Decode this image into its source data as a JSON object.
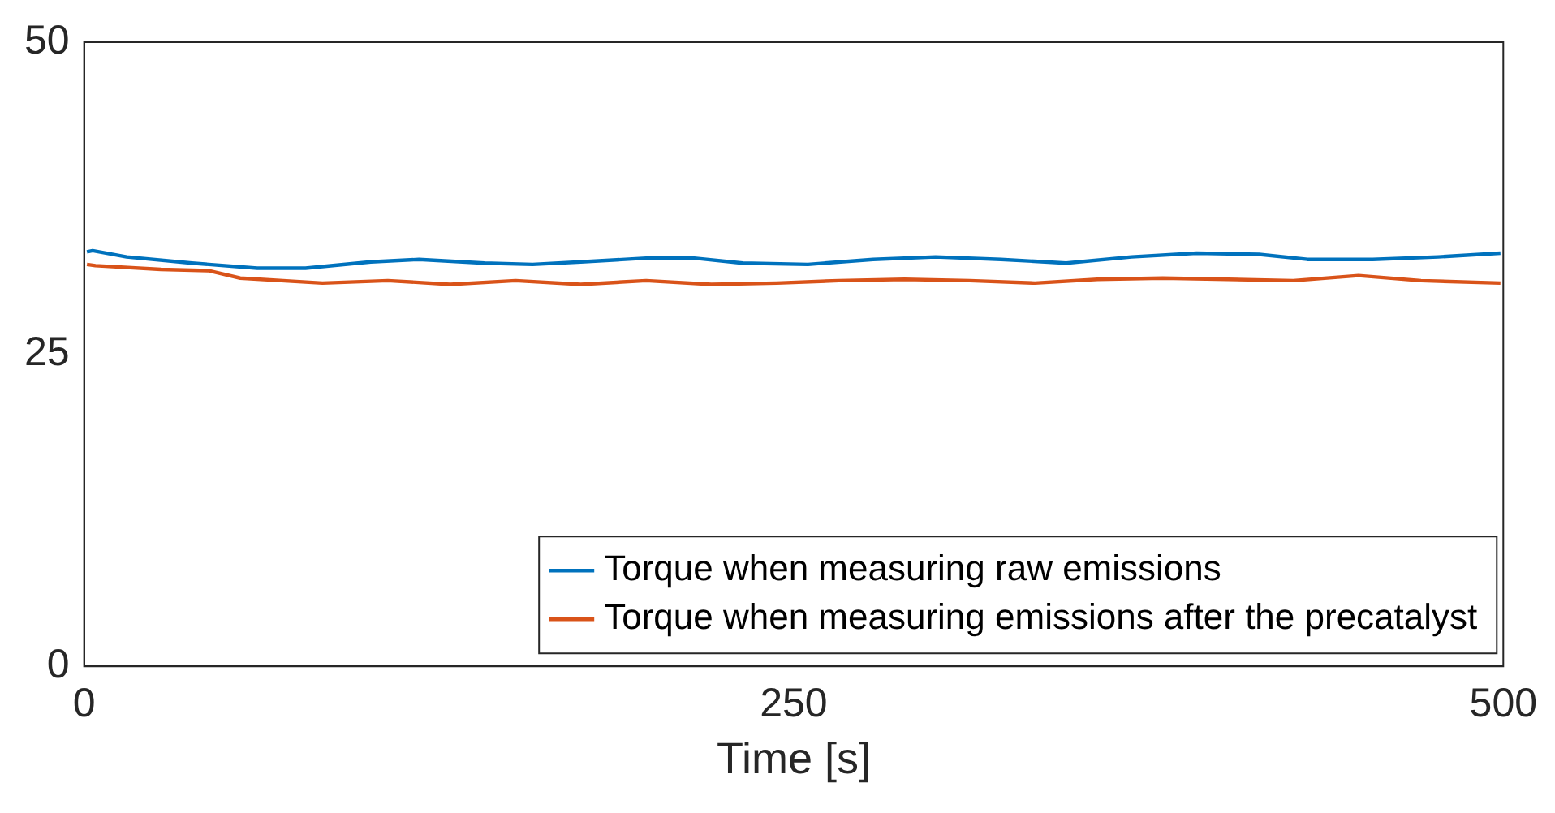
{
  "chart_data": {
    "type": "line",
    "xlabel": "Time [s]",
    "xlim": [
      0,
      500
    ],
    "xticks": [
      0,
      250,
      500
    ],
    "ylim": [
      0,
      50
    ],
    "yticks": [
      0,
      25,
      50
    ],
    "grid": false,
    "legend": "bottom right",
    "marker": "none",
    "line_style": "solid",
    "series": [
      {
        "name": "Torque when measuring raw emissions",
        "color": "#0072bd",
        "x": [
          1,
          3,
          15,
          38,
          61,
          78,
          101,
          118,
          141,
          158,
          175,
          198,
          215,
          232,
          255,
          278,
          300,
          323,
          346,
          369,
          392,
          414,
          431,
          454,
          477,
          499
        ],
        "values": [
          33.2,
          33.3,
          32.8,
          32.3,
          31.9,
          31.9,
          32.4,
          32.6,
          32.3,
          32.2,
          32.4,
          32.7,
          32.7,
          32.3,
          32.2,
          32.6,
          32.8,
          32.6,
          32.3,
          32.8,
          33.1,
          33.0,
          32.6,
          32.6,
          32.8,
          33.1
        ]
      },
      {
        "name": "Torque when measuring emissions after the precatalyst",
        "color": "#d95319",
        "x": [
          1,
          4,
          27,
          44,
          55,
          84,
          107,
          129,
          152,
          175,
          198,
          221,
          244,
          266,
          289,
          312,
          335,
          357,
          380,
          403,
          426,
          449,
          471,
          499
        ],
        "values": [
          32.2,
          32.1,
          31.8,
          31.7,
          31.1,
          30.7,
          30.9,
          30.6,
          30.9,
          30.6,
          30.9,
          30.6,
          30.7,
          30.9,
          31.0,
          30.9,
          30.7,
          31.0,
          31.1,
          31.0,
          30.9,
          31.3,
          30.9,
          30.7
        ]
      }
    ]
  }
}
